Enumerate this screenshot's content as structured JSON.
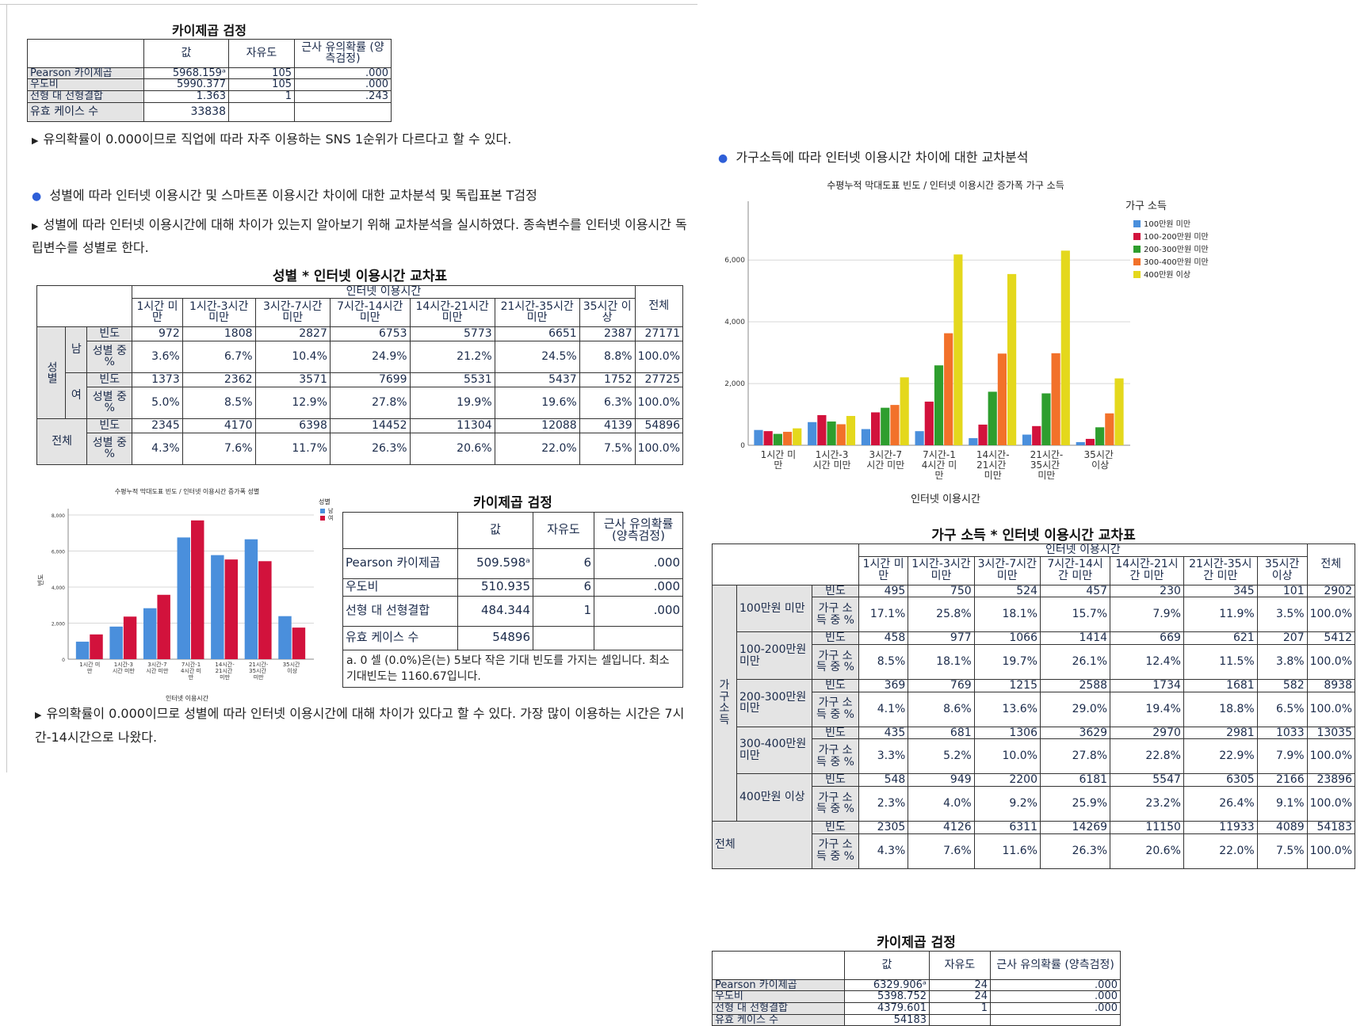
{
  "chi_top": {
    "title": "카이제곱 검정",
    "h_val": "값",
    "h_df": "자유도",
    "h_sig": "근사 유의확률 (양측검정)",
    "rows": [
      {
        "label": "Pearson 카이제곱",
        "val": "5968.159ᵃ",
        "df": "105",
        "sig": ".000"
      },
      {
        "label": "우도비",
        "val": "5990.377",
        "df": "105",
        "sig": ".000"
      },
      {
        "label": "선형 대 선형결합",
        "val": "1.363",
        "df": "1",
        "sig": ".243"
      },
      {
        "label": "유효 케이스 수",
        "val": "33838",
        "df": "",
        "sig": ""
      }
    ]
  },
  "text": {
    "note1": "유의확률이 0.000이므로 직업에 따라 자주 이용하는 SNS 1순위가 다르다고 할 수 있다.",
    "heading_gender": "성별에 따라 인터넷 이용시간 및 스마트폰 이용시간 차이에 대한 교차분석 및 독립표본 T검정",
    "intro_gender": "성별에 따라 인터넷 이용시간에 대해 차이가 있는지 알아보기 위해 교차분석을 실시하였다. 종속변수를 인터넷 이용시간 독립변수를 성별로 한다.",
    "conclusion_gender": "유의확률이 0.000이므로 성별에 따라 인터넷 이용시간에 대해 차이가 있다고 할 수 있다. 가장 많이 이용하는 시간은 7시간-14시간으로 나왔다.",
    "heading_income": "가구소득에 따라 인터넷 이용시간 차이에 대한 교차분석"
  },
  "gender_crosstab": {
    "title": "성별 * 인터넷 이용시간 교차표",
    "span": "인터넷 이용시간",
    "cols": [
      "1시간 미만",
      "1시간-3시간 미만",
      "3시간-7시간 미만",
      "7시간-14시간 미만",
      "14시간-21시간 미만",
      "21시간-35시간 미만",
      "35시간 이상"
    ],
    "total": "전체",
    "group": "성별",
    "m": "남",
    "f": "여",
    "freq": "빈도",
    "pct": "성별 중 %",
    "rows": [
      {
        "freq": [
          "972",
          "1808",
          "2827",
          "6753",
          "5773",
          "6651",
          "2387",
          "27171"
        ],
        "pct": [
          "3.6%",
          "6.7%",
          "10.4%",
          "24.9%",
          "21.2%",
          "24.5%",
          "8.8%",
          "100.0%"
        ]
      },
      {
        "freq": [
          "1373",
          "2362",
          "3571",
          "7699",
          "5531",
          "5437",
          "1752",
          "27725"
        ],
        "pct": [
          "5.0%",
          "8.5%",
          "12.9%",
          "27.8%",
          "19.9%",
          "19.6%",
          "6.3%",
          "100.0%"
        ]
      },
      {
        "freq": [
          "2345",
          "4170",
          "6398",
          "14452",
          "11304",
          "12088",
          "4139",
          "54896"
        ],
        "pct": [
          "4.3%",
          "7.6%",
          "11.7%",
          "26.3%",
          "20.6%",
          "22.0%",
          "7.5%",
          "100.0%"
        ]
      }
    ]
  },
  "chi_gender": {
    "title": "카이제곱 검정",
    "h_val": "값",
    "h_df": "자유도",
    "h_sig": "근사 유의확률 (양측검정)",
    "rows": [
      {
        "label": "Pearson 카이제곱",
        "val": "509.598ᵃ",
        "df": "6",
        "sig": ".000"
      },
      {
        "label": "우도비",
        "val": "510.935",
        "df": "6",
        "sig": ".000"
      },
      {
        "label": "선형 대 선형결합",
        "val": "484.344",
        "df": "1",
        "sig": ".000"
      },
      {
        "label": "유효 케이스 수",
        "val": "54896",
        "df": "",
        "sig": ""
      }
    ],
    "footnote": "a. 0 셀 (0.0%)은(는) 5보다 작은 기대 빈도를 가지는 셀입니다. 최소 기대빈도는 1160.67입니다."
  },
  "chart_data": [
    {
      "type": "bar",
      "title": "수평누적 막대도표 빈도 / 인터넷 이용시간 증가폭 성별",
      "xlabel": "인터넷 이용시간",
      "ylabel": "빈도",
      "legend_title": "성별",
      "legend_position": "top-right",
      "categories": [
        "1시간 미만",
        "1시간-3시간 미만",
        "3시간-7시간 미만",
        "7시간-14시간 미만",
        "14시간-21시간 미만",
        "21시간-35시간 미만",
        "35시간 이상"
      ],
      "yticks": [
        "0",
        "2,000",
        "4,000",
        "6,000",
        "8,000"
      ],
      "ylim": [
        0,
        8000
      ],
      "grid": true,
      "series": [
        {
          "name": "남",
          "color": "#4a8fdc",
          "values": [
            972,
            1808,
            2827,
            6753,
            5773,
            6651,
            2387
          ]
        },
        {
          "name": "여",
          "color": "#d2123c",
          "values": [
            1373,
            2362,
            3571,
            7699,
            5531,
            5437,
            1752
          ]
        }
      ]
    },
    {
      "type": "bar",
      "title": "수평누적 막대도표 빈도 / 인터넷 이용시간 증가폭 가구 소득",
      "xlabel": "인터넷 이용시간",
      "ylabel": "",
      "legend_title": "가구 소득",
      "legend_position": "top-right",
      "categories": [
        "1시간 미만",
        "1시간-3시간 미만",
        "3시간-7시간 미만",
        "7시간-14시간 미만",
        "14시간-21시간 미만",
        "21시간-35시간 미만",
        "35시간 이상"
      ],
      "yticks": [
        "0",
        "2,000",
        "4,000",
        "6,000"
      ],
      "ylim": [
        0,
        7700
      ],
      "grid": true,
      "series": [
        {
          "name": "100만원 미만",
          "color": "#4a8fdc",
          "values": [
            495,
            750,
            524,
            457,
            230,
            345,
            101
          ]
        },
        {
          "name": "100-200만원 미만",
          "color": "#d2123c",
          "values": [
            458,
            977,
            1066,
            1414,
            669,
            621,
            207
          ]
        },
        {
          "name": "200-300만원 미만",
          "color": "#2e9e2e",
          "values": [
            369,
            769,
            1215,
            2588,
            1734,
            1681,
            582
          ]
        },
        {
          "name": "300-400만원 미만",
          "color": "#f2712a",
          "values": [
            435,
            681,
            1306,
            3629,
            2970,
            2981,
            1033
          ]
        },
        {
          "name": "400만원 이상",
          "color": "#e4d81c",
          "values": [
            548,
            949,
            2200,
            6181,
            5547,
            6305,
            2166
          ]
        }
      ]
    }
  ],
  "income_crosstab": {
    "title": "가구 소득 * 인터넷 이용시간 교차표",
    "span": "인터넷 이용시간",
    "cols": [
      "1시간 미만",
      "1시간-3시간 미만",
      "3시간-7시간 미만",
      "7시간-14시간 미만",
      "14시간-21시간 미만",
      "21시간-35시간 미만",
      "35시간 이상"
    ],
    "total": "전체",
    "group": "가구 소득",
    "freq": "빈도",
    "pct": "가구 소득 중 %",
    "rows": [
      {
        "label": "100만원 미만",
        "freq": [
          "495",
          "750",
          "524",
          "457",
          "230",
          "345",
          "101",
          "2902"
        ],
        "pct": [
          "17.1%",
          "25.8%",
          "18.1%",
          "15.7%",
          "7.9%",
          "11.9%",
          "3.5%",
          "100.0%"
        ]
      },
      {
        "label": "100-200만원 미만",
        "freq": [
          "458",
          "977",
          "1066",
          "1414",
          "669",
          "621",
          "207",
          "5412"
        ],
        "pct": [
          "8.5%",
          "18.1%",
          "19.7%",
          "26.1%",
          "12.4%",
          "11.5%",
          "3.8%",
          "100.0%"
        ]
      },
      {
        "label": "200-300만원 미만",
        "freq": [
          "369",
          "769",
          "1215",
          "2588",
          "1734",
          "1681",
          "582",
          "8938"
        ],
        "pct": [
          "4.1%",
          "8.6%",
          "13.6%",
          "29.0%",
          "19.4%",
          "18.8%",
          "6.5%",
          "100.0%"
        ]
      },
      {
        "label": "300-400만원 미만",
        "freq": [
          "435",
          "681",
          "1306",
          "3629",
          "2970",
          "2981",
          "1033",
          "13035"
        ],
        "pct": [
          "3.3%",
          "5.2%",
          "10.0%",
          "27.8%",
          "22.8%",
          "22.9%",
          "7.9%",
          "100.0%"
        ]
      },
      {
        "label": "400만원 이상",
        "freq": [
          "548",
          "949",
          "2200",
          "6181",
          "5547",
          "6305",
          "2166",
          "23896"
        ],
        "pct": [
          "2.3%",
          "4.0%",
          "9.2%",
          "25.9%",
          "23.2%",
          "26.4%",
          "9.1%",
          "100.0%"
        ]
      },
      {
        "label": "전체",
        "freq": [
          "2305",
          "4126",
          "6311",
          "14269",
          "11150",
          "11933",
          "4089",
          "54183"
        ],
        "pct": [
          "4.3%",
          "7.6%",
          "11.6%",
          "26.3%",
          "20.6%",
          "22.0%",
          "7.5%",
          "100.0%"
        ]
      }
    ]
  },
  "chi_income": {
    "title": "카이제곱 검정",
    "h_val": "값",
    "h_df": "자유도",
    "h_sig": "근사 유의확률 (양측검정)",
    "rows": [
      {
        "label": "Pearson 카이제곱",
        "val": "6329.906ᵃ",
        "df": "24",
        "sig": ".000"
      },
      {
        "label": "우도비",
        "val": "5398.752",
        "df": "24",
        "sig": ".000"
      },
      {
        "label": "선형 대 선형결합",
        "val": "4379.601",
        "df": "1",
        "sig": ".000"
      },
      {
        "label": "유효 케이스 수",
        "val": "54183",
        "df": "",
        "sig": ""
      }
    ]
  }
}
